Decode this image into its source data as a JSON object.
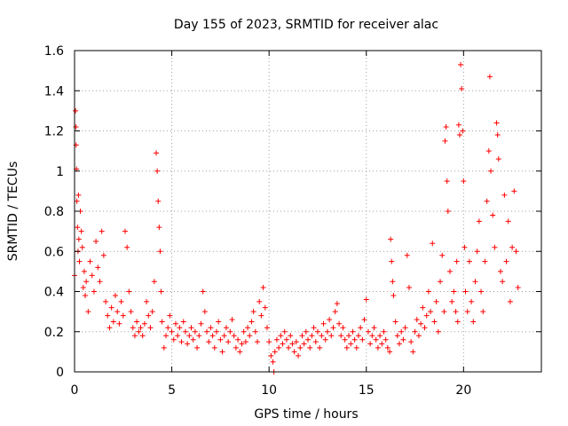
{
  "chart_data": {
    "type": "scatter",
    "title": "Day 155 of 2023, SRMTID for receiver alac",
    "xlabel": "GPS time / hours",
    "ylabel": "SRMTID / TECUs",
    "xlim": [
      0,
      24
    ],
    "ylim": [
      0,
      1.6
    ],
    "xticks": [
      0,
      5,
      10,
      15,
      20
    ],
    "xtick_labels": [
      "0",
      "5",
      "10",
      "15",
      "20"
    ],
    "yticks": [
      0,
      0.2,
      0.4,
      0.6,
      0.8,
      1.0,
      1.2,
      1.4,
      1.6
    ],
    "ytick_labels": [
      "0",
      "0.2",
      "0.4",
      "0.6",
      "0.8",
      "1",
      "1.2",
      "1.4",
      "1.6"
    ],
    "grid": true,
    "marker": "+",
    "color": "#ff0000",
    "series": [
      {
        "name": "SRMTID",
        "points": [
          [
            0.0,
            0.48
          ],
          [
            0.05,
            1.3
          ],
          [
            0.07,
            1.22
          ],
          [
            0.08,
            1.13
          ],
          [
            0.1,
            1.01
          ],
          [
            0.12,
            0.85
          ],
          [
            0.15,
            0.72
          ],
          [
            0.18,
            0.6
          ],
          [
            0.2,
            0.88
          ],
          [
            0.22,
            0.66
          ],
          [
            0.25,
            0.55
          ],
          [
            0.3,
            0.8
          ],
          [
            0.35,
            0.7
          ],
          [
            0.4,
            0.62
          ],
          [
            0.45,
            0.42
          ],
          [
            0.5,
            0.5
          ],
          [
            0.55,
            0.38
          ],
          [
            0.6,
            0.45
          ],
          [
            0.7,
            0.3
          ],
          [
            0.8,
            0.55
          ],
          [
            0.9,
            0.48
          ],
          [
            1.0,
            0.4
          ],
          [
            1.1,
            0.65
          ],
          [
            1.2,
            0.52
          ],
          [
            1.3,
            0.45
          ],
          [
            1.4,
            0.7
          ],
          [
            1.5,
            0.58
          ],
          [
            1.6,
            0.35
          ],
          [
            1.7,
            0.28
          ],
          [
            1.8,
            0.22
          ],
          [
            1.9,
            0.32
          ],
          [
            2.0,
            0.25
          ],
          [
            2.1,
            0.38
          ],
          [
            2.2,
            0.3
          ],
          [
            2.3,
            0.24
          ],
          [
            2.4,
            0.35
          ],
          [
            2.5,
            0.28
          ],
          [
            2.6,
            0.7
          ],
          [
            2.7,
            0.62
          ],
          [
            2.8,
            0.4
          ],
          [
            2.9,
            0.3
          ],
          [
            3.0,
            0.22
          ],
          [
            3.1,
            0.18
          ],
          [
            3.2,
            0.25
          ],
          [
            3.3,
            0.2
          ],
          [
            3.4,
            0.22
          ],
          [
            3.5,
            0.18
          ],
          [
            3.6,
            0.24
          ],
          [
            3.7,
            0.35
          ],
          [
            3.8,
            0.28
          ],
          [
            3.9,
            0.22
          ],
          [
            4.0,
            0.3
          ],
          [
            4.1,
            0.45
          ],
          [
            4.2,
            1.09
          ],
          [
            4.25,
            1.0
          ],
          [
            4.3,
            0.85
          ],
          [
            4.35,
            0.72
          ],
          [
            4.4,
            0.6
          ],
          [
            4.45,
            0.4
          ],
          [
            4.5,
            0.25
          ],
          [
            4.6,
            0.12
          ],
          [
            4.7,
            0.18
          ],
          [
            4.8,
            0.22
          ],
          [
            4.9,
            0.28
          ],
          [
            5.0,
            0.2
          ],
          [
            5.1,
            0.16
          ],
          [
            5.2,
            0.24
          ],
          [
            5.3,
            0.18
          ],
          [
            5.4,
            0.22
          ],
          [
            5.5,
            0.15
          ],
          [
            5.6,
            0.25
          ],
          [
            5.7,
            0.2
          ],
          [
            5.8,
            0.14
          ],
          [
            5.9,
            0.18
          ],
          [
            6.0,
            0.22
          ],
          [
            6.1,
            0.16
          ],
          [
            6.2,
            0.2
          ],
          [
            6.3,
            0.12
          ],
          [
            6.4,
            0.18
          ],
          [
            6.5,
            0.24
          ],
          [
            6.6,
            0.4
          ],
          [
            6.7,
            0.3
          ],
          [
            6.8,
            0.2
          ],
          [
            6.9,
            0.15
          ],
          [
            7.0,
            0.22
          ],
          [
            7.1,
            0.18
          ],
          [
            7.2,
            0.12
          ],
          [
            7.3,
            0.2
          ],
          [
            7.4,
            0.25
          ],
          [
            7.5,
            0.16
          ],
          [
            7.6,
            0.1
          ],
          [
            7.7,
            0.18
          ],
          [
            7.8,
            0.22
          ],
          [
            7.9,
            0.15
          ],
          [
            8.0,
            0.2
          ],
          [
            8.1,
            0.26
          ],
          [
            8.2,
            0.18
          ],
          [
            8.3,
            0.12
          ],
          [
            8.4,
            0.16
          ],
          [
            8.5,
            0.1
          ],
          [
            8.6,
            0.14
          ],
          [
            8.7,
            0.2
          ],
          [
            8.8,
            0.15
          ],
          [
            8.9,
            0.22
          ],
          [
            9.0,
            0.18
          ],
          [
            9.1,
            0.25
          ],
          [
            9.2,
            0.3
          ],
          [
            9.3,
            0.2
          ],
          [
            9.4,
            0.15
          ],
          [
            9.5,
            0.35
          ],
          [
            9.6,
            0.28
          ],
          [
            9.7,
            0.42
          ],
          [
            9.8,
            0.32
          ],
          [
            9.9,
            0.22
          ],
          [
            10.0,
            0.15
          ],
          [
            10.1,
            0.08
          ],
          [
            10.2,
            0.05
          ],
          [
            10.25,
            0.0
          ],
          [
            10.3,
            0.1
          ],
          [
            10.4,
            0.16
          ],
          [
            10.5,
            0.12
          ],
          [
            10.6,
            0.18
          ],
          [
            10.7,
            0.14
          ],
          [
            10.8,
            0.2
          ],
          [
            10.9,
            0.16
          ],
          [
            11.0,
            0.12
          ],
          [
            11.1,
            0.18
          ],
          [
            11.2,
            0.14
          ],
          [
            11.3,
            0.1
          ],
          [
            11.4,
            0.15
          ],
          [
            11.5,
            0.08
          ],
          [
            11.6,
            0.12
          ],
          [
            11.7,
            0.18
          ],
          [
            11.8,
            0.14
          ],
          [
            11.9,
            0.2
          ],
          [
            12.0,
            0.16
          ],
          [
            12.1,
            0.12
          ],
          [
            12.2,
            0.18
          ],
          [
            12.3,
            0.22
          ],
          [
            12.4,
            0.15
          ],
          [
            12.5,
            0.2
          ],
          [
            12.6,
            0.12
          ],
          [
            12.7,
            0.18
          ],
          [
            12.8,
            0.24
          ],
          [
            12.9,
            0.16
          ],
          [
            13.0,
            0.2
          ],
          [
            13.1,
            0.26
          ],
          [
            13.2,
            0.18
          ],
          [
            13.3,
            0.22
          ],
          [
            13.4,
            0.3
          ],
          [
            13.5,
            0.34
          ],
          [
            13.6,
            0.24
          ],
          [
            13.7,
            0.18
          ],
          [
            13.8,
            0.22
          ],
          [
            13.9,
            0.16
          ],
          [
            14.0,
            0.12
          ],
          [
            14.1,
            0.18
          ],
          [
            14.2,
            0.14
          ],
          [
            14.3,
            0.2
          ],
          [
            14.4,
            0.16
          ],
          [
            14.5,
            0.12
          ],
          [
            14.6,
            0.18
          ],
          [
            14.7,
            0.22
          ],
          [
            14.8,
            0.16
          ],
          [
            14.9,
            0.26
          ],
          [
            15.0,
            0.36
          ],
          [
            15.1,
            0.2
          ],
          [
            15.2,
            0.14
          ],
          [
            15.3,
            0.18
          ],
          [
            15.4,
            0.22
          ],
          [
            15.5,
            0.16
          ],
          [
            15.6,
            0.12
          ],
          [
            15.7,
            0.18
          ],
          [
            15.8,
            0.14
          ],
          [
            15.9,
            0.2
          ],
          [
            16.0,
            0.16
          ],
          [
            16.1,
            0.12
          ],
          [
            16.2,
            0.1
          ],
          [
            16.25,
            0.66
          ],
          [
            16.3,
            0.55
          ],
          [
            16.35,
            0.45
          ],
          [
            16.4,
            0.38
          ],
          [
            16.5,
            0.25
          ],
          [
            16.6,
            0.18
          ],
          [
            16.7,
            0.14
          ],
          [
            16.8,
            0.2
          ],
          [
            16.9,
            0.16
          ],
          [
            17.0,
            0.22
          ],
          [
            17.1,
            0.58
          ],
          [
            17.2,
            0.42
          ],
          [
            17.3,
            0.15
          ],
          [
            17.4,
            0.1
          ],
          [
            17.5,
            0.2
          ],
          [
            17.6,
            0.26
          ],
          [
            17.7,
            0.18
          ],
          [
            17.8,
            0.24
          ],
          [
            17.9,
            0.32
          ],
          [
            18.0,
            0.22
          ],
          [
            18.1,
            0.28
          ],
          [
            18.2,
            0.4
          ],
          [
            18.3,
            0.3
          ],
          [
            18.4,
            0.64
          ],
          [
            18.5,
            0.25
          ],
          [
            18.6,
            0.35
          ],
          [
            18.7,
            0.2
          ],
          [
            18.8,
            0.45
          ],
          [
            18.9,
            0.58
          ],
          [
            19.0,
            0.3
          ],
          [
            19.05,
            1.15
          ],
          [
            19.1,
            1.22
          ],
          [
            19.15,
            0.95
          ],
          [
            19.2,
            0.8
          ],
          [
            19.3,
            0.5
          ],
          [
            19.4,
            0.35
          ],
          [
            19.5,
            0.4
          ],
          [
            19.6,
            0.3
          ],
          [
            19.65,
            0.55
          ],
          [
            19.7,
            0.25
          ],
          [
            19.75,
            1.23
          ],
          [
            19.8,
            1.18
          ],
          [
            19.85,
            1.53
          ],
          [
            19.9,
            1.41
          ],
          [
            19.95,
            1.2
          ],
          [
            20.0,
            0.95
          ],
          [
            20.05,
            0.62
          ],
          [
            20.1,
            0.4
          ],
          [
            20.2,
            0.3
          ],
          [
            20.3,
            0.55
          ],
          [
            20.4,
            0.35
          ],
          [
            20.5,
            0.25
          ],
          [
            20.6,
            0.45
          ],
          [
            20.7,
            0.6
          ],
          [
            20.8,
            0.75
          ],
          [
            20.9,
            0.4
          ],
          [
            21.0,
            0.3
          ],
          [
            21.1,
            0.55
          ],
          [
            21.2,
            0.85
          ],
          [
            21.3,
            1.1
          ],
          [
            21.35,
            1.47
          ],
          [
            21.4,
            1.0
          ],
          [
            21.5,
            0.78
          ],
          [
            21.6,
            0.62
          ],
          [
            21.7,
            1.24
          ],
          [
            21.75,
            1.18
          ],
          [
            21.8,
            1.06
          ],
          [
            21.9,
            0.5
          ],
          [
            22.0,
            0.45
          ],
          [
            22.1,
            0.88
          ],
          [
            22.2,
            0.55
          ],
          [
            22.3,
            0.75
          ],
          [
            22.4,
            0.35
          ],
          [
            22.5,
            0.62
          ],
          [
            22.6,
            0.9
          ],
          [
            22.7,
            0.6
          ],
          [
            22.8,
            0.42
          ]
        ]
      }
    ]
  }
}
